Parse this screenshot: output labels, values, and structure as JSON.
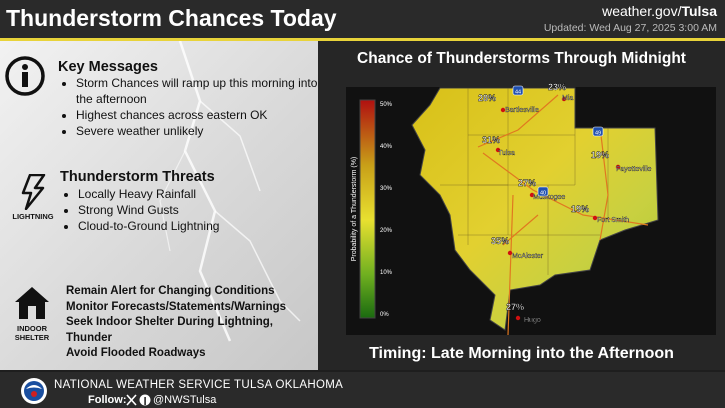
{
  "header": {
    "title": "Thunderstorm Chances Today",
    "site_prefix": "weather.gov/",
    "site_name": "Tulsa",
    "updated": "Updated: Wed Aug 27, 2025 3:00 AM"
  },
  "key_messages": {
    "title": "Key Messages",
    "items": [
      "Storm Chances will ramp up this morning into the afternoon",
      "Highest chances across eastern OK",
      "Severe weather unlikely"
    ]
  },
  "threats": {
    "icon_label": "LIGHTNING",
    "title": "Thunderstorm Threats",
    "items": [
      "Locally Heavy Rainfall",
      "Strong Wind Gusts",
      "Cloud-to-Ground Lightning"
    ]
  },
  "shelter": {
    "icon_label": "INDOOR SHELTER",
    "items": [
      "Remain Alert for Changing Conditions",
      "Monitor Forecasts/Statements/Warnings",
      "Seek Indoor Shelter During Lightning, Thunder",
      "Avoid Flooded Roadways"
    ]
  },
  "map": {
    "title": "Chance of Thunderstorms Through Midnight",
    "colorbar": {
      "label": "Probability of a Thunderstorm (%)",
      "ticks": [
        "50%",
        "40%",
        "30%",
        "20%",
        "10%",
        "0%"
      ]
    },
    "points": [
      {
        "value": "28%",
        "city": "Bartlesville"
      },
      {
        "value": "23%",
        "city": "Mia"
      },
      {
        "value": "31%",
        "city": "Tulsa"
      },
      {
        "value": "27%",
        "city": "Muskogee"
      },
      {
        "value": "19%",
        "city": "Fayetteville"
      },
      {
        "value": "19%",
        "city": "Fort Smith"
      },
      {
        "value": "35%",
        "city": "McAlester"
      },
      {
        "value": "27%",
        "city": "Hugo"
      }
    ],
    "shields": [
      "44",
      "49",
      "40"
    ]
  },
  "timing": "Timing: Late Morning into the Afternoon",
  "footer": {
    "office": "NATIONAL WEATHER SERVICE TULSA OKLAHOMA",
    "follow": "Follow:",
    "handle": "@NWSTulsa"
  }
}
